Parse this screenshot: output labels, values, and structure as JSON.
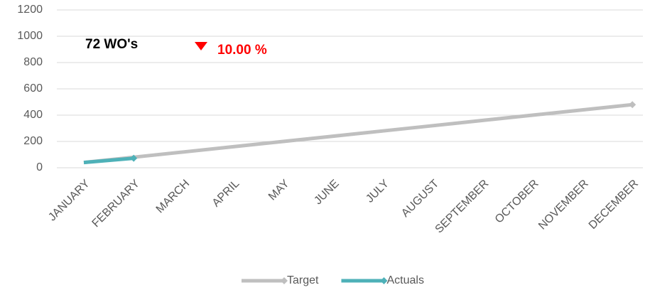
{
  "chart_data": {
    "type": "line",
    "categories": [
      "JANUARY",
      "FEBRUARY",
      "MARCH",
      "APRIL",
      "MAY",
      "JUNE",
      "JULY",
      "AUGUST",
      "SEPTEMBER",
      "OCTOBER",
      "NOVEMBER",
      "DECEMBER"
    ],
    "series": [
      {
        "name": "Target",
        "color": "#bfbfbf",
        "values": [
          40,
          80,
          120,
          160,
          200,
          240,
          280,
          320,
          360,
          400,
          440,
          480
        ]
      },
      {
        "name": "Actuals",
        "color": "#4eb1b8",
        "values": [
          40,
          72,
          null,
          null,
          null,
          null,
          null,
          null,
          null,
          null,
          null,
          null
        ]
      }
    ],
    "ylim": [
      0,
      1200
    ],
    "yticks": [
      0,
      200,
      400,
      600,
      800,
      1000,
      1200
    ],
    "grid": true,
    "annotations": [
      "72 WO's",
      "10.00 %"
    ]
  }
}
